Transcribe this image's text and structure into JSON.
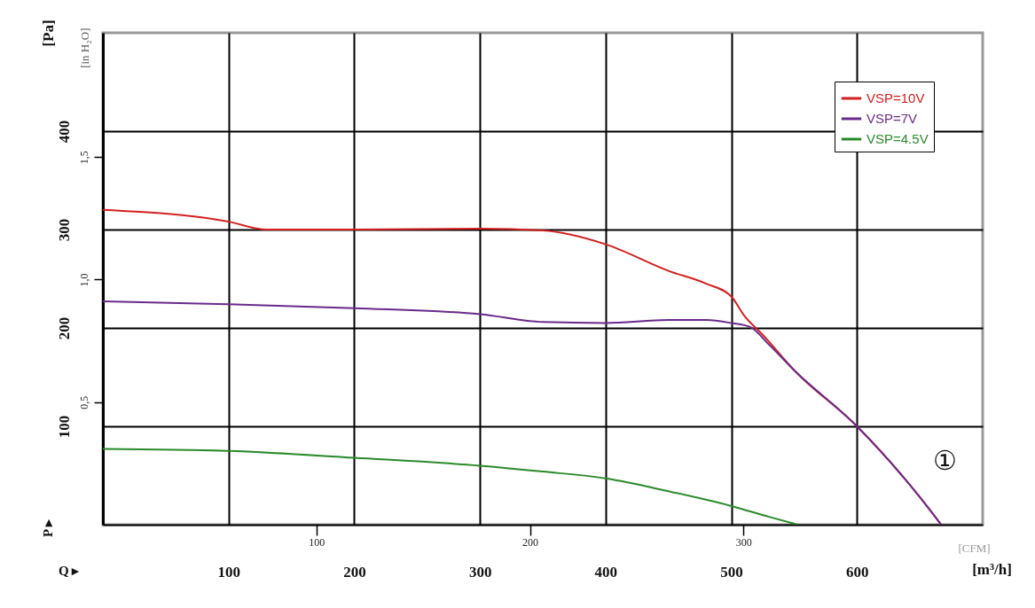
{
  "chart_data": {
    "type": "line",
    "xlabel": "[m³/h]",
    "ylabel": "[Pa]",
    "y2label": "[in H₂O]",
    "x2label": "[CFM]",
    "xlim": [
      0,
      700
    ],
    "xticks": [
      100,
      200,
      300,
      400,
      500,
      600
    ],
    "ylim": [
      0,
      500
    ],
    "yticks": [
      100,
      200,
      300,
      400
    ],
    "x2lim": [
      0,
      412
    ],
    "x2ticks": [
      100,
      200,
      300
    ],
    "y2lim": [
      0,
      2.007
    ],
    "y2ticks": [
      {
        "value": 0.5,
        "label": "0,5"
      },
      {
        "value": 1.0,
        "label": "1,0"
      },
      {
        "value": 1.5,
        "label": "1,5"
      }
    ],
    "grid": true,
    "legend": "top right",
    "line_style": "solid",
    "annotations": [
      "P ▸",
      "Q ▸",
      "①"
    ],
    "series": [
      {
        "name": "VSP=10V",
        "color": "#d42020",
        "x": [
          0,
          100,
          130,
          200,
          300,
          350,
          400,
          450,
          480,
          500,
          510,
          525,
          550,
          600,
          650,
          667
        ],
        "values": [
          320,
          308,
          300,
          300,
          301,
          299,
          285,
          258,
          245,
          232,
          213,
          193,
          157,
          100,
          28,
          0
        ]
      },
      {
        "name": "VSP=7V",
        "color": "#6a2a8a",
        "x": [
          0,
          100,
          200,
          300,
          350,
          400,
          450,
          480,
          500,
          515,
          530,
          550,
          600,
          650,
          667
        ],
        "values": [
          227,
          224,
          220,
          214,
          206,
          205,
          208,
          208,
          205,
          201,
          183,
          157,
          100,
          28,
          0
        ]
      },
      {
        "name": "VSP=4.5V",
        "color": "#2a8a2a",
        "x": [
          0,
          100,
          200,
          300,
          350,
          400,
          450,
          500,
          530,
          553
        ],
        "values": [
          77,
          75,
          68,
          60,
          54,
          47,
          34,
          19,
          8,
          0
        ]
      }
    ]
  }
}
